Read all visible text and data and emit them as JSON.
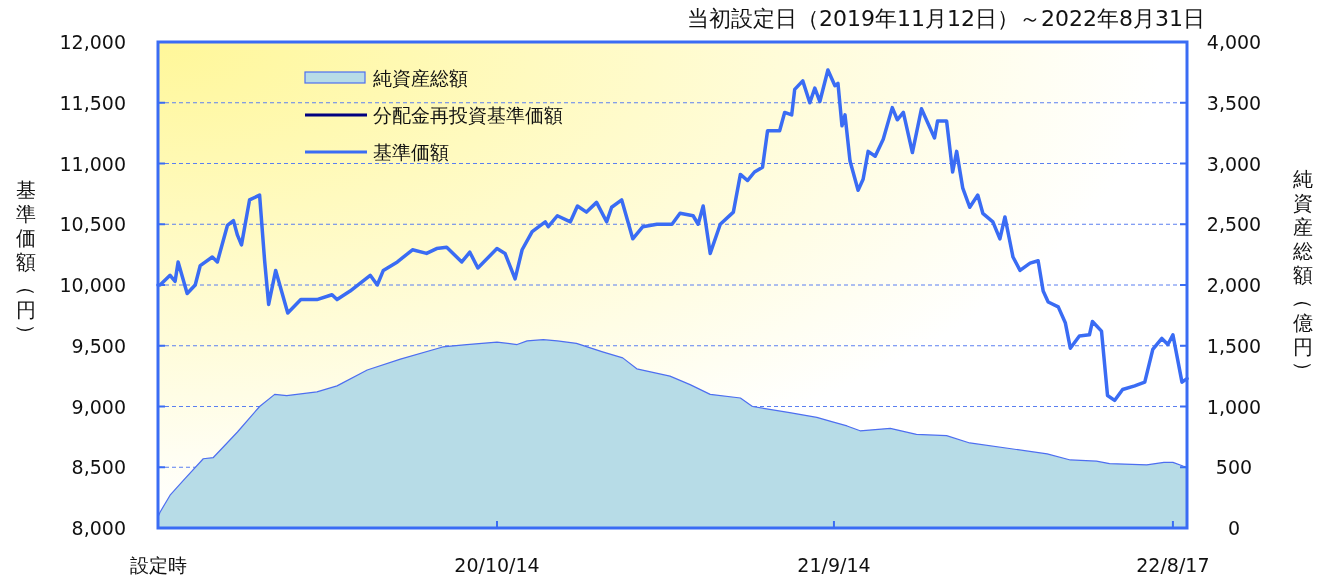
{
  "chart_data": {
    "type": "line",
    "title": "当初設定日（2019年11月12日）～2022年8月31日",
    "ylabel": "基準価額（円）",
    "y2label": "純資産総額（億円）",
    "xlim": [
      "2019-11-12",
      "2022-08-31"
    ],
    "xticks": [
      {
        "value": "2019-11-12",
        "label": "設定時"
      },
      {
        "value": "2020-10-14",
        "label": "20/10/14"
      },
      {
        "value": "2021-09-14",
        "label": "21/9/14"
      },
      {
        "value": "2022-08-17",
        "label": "22/8/17"
      }
    ],
    "ylim": [
      8000,
      12000
    ],
    "yticks": [
      {
        "value": 8000,
        "label": "8,000"
      },
      {
        "value": 8500,
        "label": "8,500"
      },
      {
        "value": 9000,
        "label": "9,000"
      },
      {
        "value": 9500,
        "label": "9,500"
      },
      {
        "value": 10000,
        "label": "10,000"
      },
      {
        "value": 10500,
        "label": "10,500"
      },
      {
        "value": 11000,
        "label": "11,000"
      },
      {
        "value": 11500,
        "label": "11,500"
      },
      {
        "value": 12000,
        "label": "12,000"
      }
    ],
    "y2lim": [
      0,
      4000
    ],
    "y2ticks": [
      0,
      500,
      {
        "value": 1000,
        "label": "1,000"
      },
      {
        "value": 1500,
        "label": "1,500"
      },
      {
        "value": 2000,
        "label": "2,000"
      },
      {
        "value": 2500,
        "label": "2,500"
      },
      {
        "value": 3000,
        "label": "3,000"
      },
      {
        "value": 3500,
        "label": "3,500"
      },
      {
        "value": 4000,
        "label": "4,000"
      }
    ],
    "grid": "y",
    "legend": "top left",
    "series": [
      {
        "name": "純資産総額",
        "type": "area",
        "axis": "y2",
        "color": "#b7dce7",
        "x": [
          "2019-11-12",
          "2019-11-14",
          "2019-11-24",
          "2019-12-07",
          "2019-12-27",
          "2020-01-06",
          "2020-01-30",
          "2020-02-21",
          "2020-03-07",
          "2020-03-19",
          "2020-04-18",
          "2020-05-08",
          "2020-06-07",
          "2020-07-10",
          "2020-08-21",
          "2020-09-14",
          "2020-10-14",
          "2020-11-03",
          "2020-11-13",
          "2020-11-29",
          "2020-12-13",
          "2021-01-01",
          "2021-01-27",
          "2021-02-16",
          "2021-03-02",
          "2021-04-04",
          "2021-04-24",
          "2021-05-14",
          "2021-06-13",
          "2021-06-25",
          "2021-08-01",
          "2021-08-28",
          "2021-09-10",
          "2021-09-27",
          "2021-10-10",
          "2021-11-09",
          "2021-12-05",
          "2022-01-04",
          "2022-01-27",
          "2022-03-11",
          "2022-04-14",
          "2022-05-07",
          "2022-06-02",
          "2022-06-15",
          "2022-07-22",
          "2022-08-08",
          "2022-08-17",
          "2022-08-27",
          "2022-08-31"
        ],
        "values": [
          90,
          130,
          270,
          390,
          570,
          580,
          790,
          1000,
          1100,
          1090,
          1120,
          1170,
          1300,
          1390,
          1490,
          1510,
          1530,
          1510,
          1540,
          1550,
          1540,
          1520,
          1450,
          1400,
          1310,
          1250,
          1180,
          1100,
          1070,
          1000,
          950,
          910,
          880,
          840,
          800,
          820,
          770,
          760,
          700,
          650,
          610,
          560,
          550,
          530,
          520,
          540,
          540,
          510,
          500
        ]
      },
      {
        "name": "分配金再投資基準価額",
        "type": "line",
        "color": "#000080"
      },
      {
        "name": "基準価額",
        "type": "line",
        "color": "#3a6cf4",
        "x": [
          "2019-11-12",
          "2019-11-14",
          "2019-11-24",
          "2019-11-29",
          "2019-12-02",
          "2019-12-11",
          "2019-12-19",
          "2019-12-24",
          "2020-01-05",
          "2020-01-10",
          "2020-01-20",
          "2020-01-26",
          "2020-01-30",
          "2020-02-03",
          "2020-02-11",
          "2020-02-21",
          "2020-02-26",
          "2020-03-01",
          "2020-03-08",
          "2020-03-20",
          "2020-04-02",
          "2020-04-18",
          "2020-05-03",
          "2020-05-08",
          "2020-05-21",
          "2020-06-10",
          "2020-06-17",
          "2020-06-23",
          "2020-07-07",
          "2020-07-22",
          "2020-08-05",
          "2020-08-15",
          "2020-08-25",
          "2020-09-09",
          "2020-09-17",
          "2020-09-25",
          "2020-10-14",
          "2020-10-22",
          "2020-11-01",
          "2020-11-08",
          "2020-11-18",
          "2020-12-01",
          "2020-12-04",
          "2020-12-13",
          "2020-12-26",
          "2021-01-02",
          "2021-01-11",
          "2021-01-21",
          "2021-01-31",
          "2021-02-05",
          "2021-02-15",
          "2021-02-26",
          "2021-03-08",
          "2021-03-22",
          "2021-04-06",
          "2021-04-14",
          "2021-04-27",
          "2021-05-02",
          "2021-05-07",
          "2021-05-14",
          "2021-05-24",
          "2021-06-06",
          "2021-06-13",
          "2021-06-20",
          "2021-06-27",
          "2021-07-05",
          "2021-07-10",
          "2021-07-22",
          "2021-07-27",
          "2021-08-03",
          "2021-08-06",
          "2021-08-14",
          "2021-08-21",
          "2021-08-26",
          "2021-08-31",
          "2021-09-08",
          "2021-09-15",
          "2021-09-18",
          "2021-09-22",
          "2021-09-25",
          "2021-09-30",
          "2021-10-08",
          "2021-10-13",
          "2021-10-18",
          "2021-10-25",
          "2021-11-02",
          "2021-11-11",
          "2021-11-16",
          "2021-11-22",
          "2021-12-01",
          "2021-12-10",
          "2021-12-16",
          "2021-12-23",
          "2021-12-26",
          "2022-01-04",
          "2022-01-10",
          "2022-01-14",
          "2022-01-20",
          "2022-01-27",
          "2022-02-04",
          "2022-02-09",
          "2022-02-19",
          "2022-02-26",
          "2022-03-03",
          "2022-03-11",
          "2022-03-18",
          "2022-03-28",
          "2022-04-05",
          "2022-04-10",
          "2022-04-15",
          "2022-04-25",
          "2022-05-02",
          "2022-05-07",
          "2022-05-16",
          "2022-05-26",
          "2022-05-29",
          "2022-06-07",
          "2022-06-13",
          "2022-06-20",
          "2022-06-28",
          "2022-07-10",
          "2022-07-20",
          "2022-07-28",
          "2022-08-06",
          "2022-08-12",
          "2022-08-17",
          "2022-08-26",
          "2022-08-31"
        ],
        "values": [
          10000,
          10000,
          10080,
          10030,
          10190,
          9930,
          10000,
          10160,
          10230,
          10190,
          10490,
          10530,
          10410,
          10330,
          10700,
          10740,
          10200,
          9840,
          10120,
          9770,
          9880,
          9880,
          9920,
          9880,
          9950,
          10080,
          10000,
          10120,
          10190,
          10290,
          10260,
          10300,
          10310,
          10190,
          10270,
          10140,
          10300,
          10260,
          10050,
          10290,
          10440,
          10520,
          10480,
          10570,
          10520,
          10650,
          10600,
          10680,
          10520,
          10640,
          10700,
          10380,
          10480,
          10500,
          10500,
          10590,
          10570,
          10500,
          10650,
          10260,
          10500,
          10600,
          10910,
          10860,
          10930,
          10970,
          11270,
          11270,
          11420,
          11400,
          11610,
          11680,
          11500,
          11620,
          11510,
          11770,
          11640,
          11660,
          11310,
          11400,
          11020,
          10780,
          10870,
          11100,
          11060,
          11200,
          11460,
          11360,
          11420,
          11090,
          11450,
          11340,
          11210,
          11350,
          11350,
          10930,
          11100,
          10800,
          10640,
          10740,
          10590,
          10520,
          10380,
          10560,
          10230,
          10120,
          10180,
          10200,
          9950,
          9860,
          9820,
          9690,
          9480,
          9580,
          9590,
          9700,
          9620,
          9090,
          9050,
          9140,
          9170,
          9200,
          9470,
          9560,
          9510,
          9590,
          9200,
          9230
        ]
      }
    ]
  }
}
